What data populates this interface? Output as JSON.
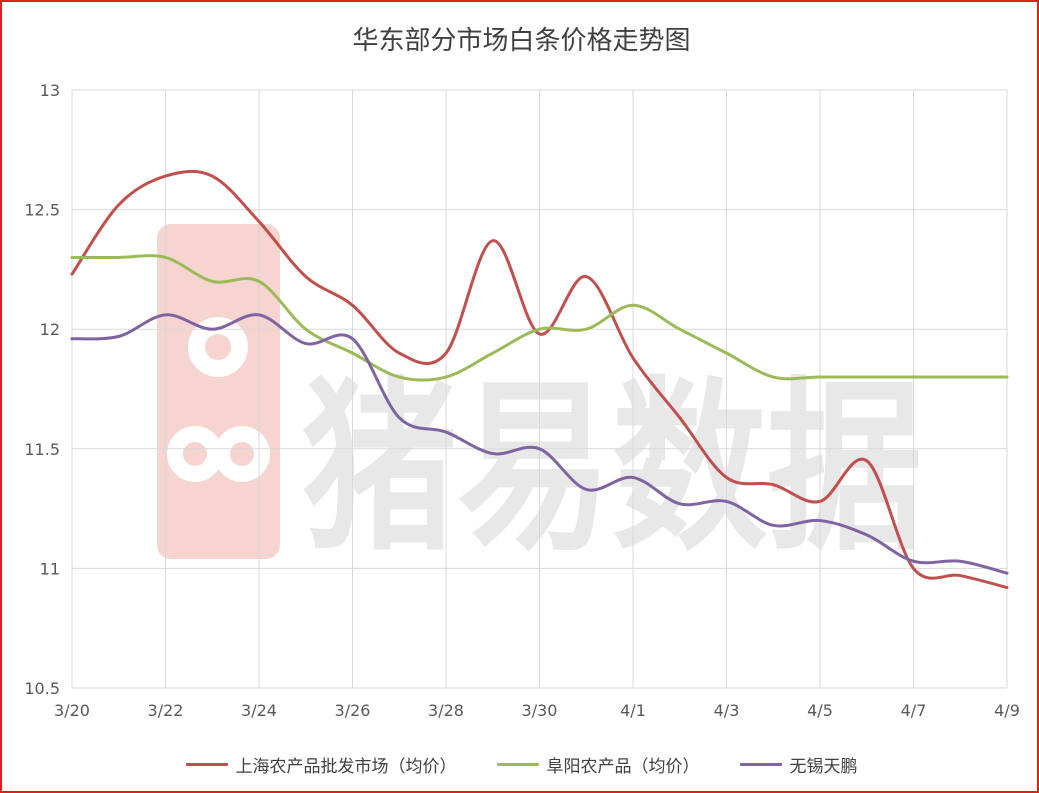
{
  "colors": {
    "border": "#e0201a",
    "grid": "#d9d9d9",
    "axis_text": "#595959",
    "watermark": "#e8e8e8",
    "watermark_logo": "#f6d4d0"
  },
  "watermark": {
    "text": "猪易数据"
  },
  "chart_data": {
    "type": "line",
    "title": "华东部分市场白条价格走势图",
    "xlabel": "",
    "ylabel": "",
    "categories": [
      "3/20",
      "3/21",
      "3/22",
      "3/23",
      "3/24",
      "3/25",
      "3/26",
      "3/27",
      "3/28",
      "3/29",
      "3/30",
      "3/31",
      "4/1",
      "4/2",
      "4/3",
      "4/4",
      "4/5",
      "4/6",
      "4/7",
      "4/8",
      "4/9"
    ],
    "x_tick_labels": [
      "3/20",
      "3/22",
      "3/24",
      "3/26",
      "3/28",
      "3/30",
      "4/1",
      "4/3",
      "4/5",
      "4/7",
      "4/9"
    ],
    "ylim": [
      10.5,
      13
    ],
    "y_ticks": [
      10.5,
      11,
      11.5,
      12,
      12.5,
      13
    ],
    "y_tick_labels": [
      "10.5",
      "11",
      "11.5",
      "12",
      "12.5",
      "13"
    ],
    "grid": true,
    "legend_position": "bottom",
    "series": [
      {
        "name": "上海农产品批发市场（均价）",
        "color": "#c0504d",
        "values": [
          12.23,
          12.52,
          12.64,
          12.64,
          12.45,
          12.22,
          12.1,
          11.9,
          11.9,
          12.37,
          11.98,
          12.22,
          11.88,
          11.63,
          11.38,
          11.35,
          11.28,
          11.45,
          11.0,
          10.97,
          10.92
        ]
      },
      {
        "name": "阜阳农产品（均价）",
        "color": "#9bbb59",
        "values": [
          12.3,
          12.3,
          12.3,
          12.2,
          12.2,
          12.0,
          11.9,
          11.8,
          11.8,
          11.9,
          12.0,
          12.0,
          12.1,
          12.0,
          11.9,
          11.8,
          11.8,
          11.8,
          11.8,
          11.8,
          11.8
        ]
      },
      {
        "name": "无锡天鹏",
        "color": "#8064a2",
        "values": [
          11.96,
          11.97,
          12.06,
          12.0,
          12.06,
          11.94,
          11.96,
          11.63,
          11.57,
          11.48,
          11.5,
          11.33,
          11.38,
          11.27,
          11.28,
          11.18,
          11.2,
          11.14,
          11.03,
          11.03,
          10.98
        ]
      }
    ]
  }
}
